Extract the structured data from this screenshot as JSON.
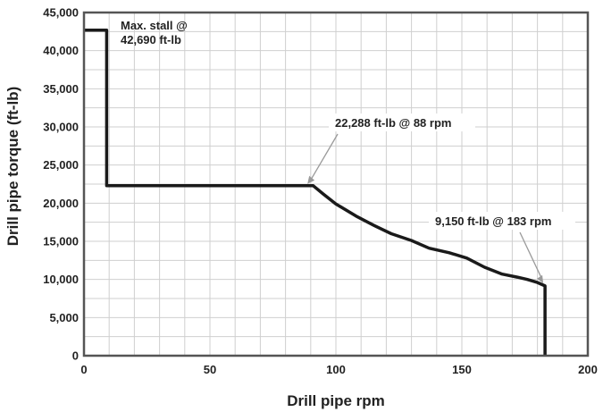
{
  "chart_data": {
    "type": "line",
    "xlabel": "Drill pipe rpm",
    "ylabel": "Drill pipe torque (ft-lb)",
    "xlim": [
      0,
      200
    ],
    "ylim": [
      0,
      45000
    ],
    "x_ticks": [
      "0",
      "50",
      "100",
      "150",
      "200"
    ],
    "y_ticks": [
      "0",
      "5,000",
      "10,000",
      "15,000",
      "20,000",
      "25,000",
      "30,000",
      "35,000",
      "40,000",
      "45,000"
    ],
    "grid": true,
    "series": [
      {
        "x": [
          0,
          9,
          9,
          88,
          91,
          95,
          100,
          108,
          115,
          122,
          130,
          137,
          145,
          152,
          159,
          166,
          172,
          176,
          180,
          183,
          183
        ],
        "y": [
          42690,
          42690,
          22288,
          22288,
          22288,
          21200,
          19900,
          18300,
          17100,
          16000,
          15100,
          14100,
          13500,
          12800,
          11600,
          10700,
          10300,
          10000,
          9600,
          9150,
          0
        ]
      }
    ],
    "annotations": [
      {
        "text": [
          "Max. stall @",
          "42,690 ft-lb"
        ],
        "x": 9,
        "y": 42690
      },
      {
        "text": [
          "22,288 ft-lb @ 88 rpm"
        ],
        "x": 88,
        "y": 22288
      },
      {
        "text": [
          "9,150 ft-lb @ 183 rpm"
        ],
        "x": 183,
        "y": 9150
      }
    ]
  }
}
